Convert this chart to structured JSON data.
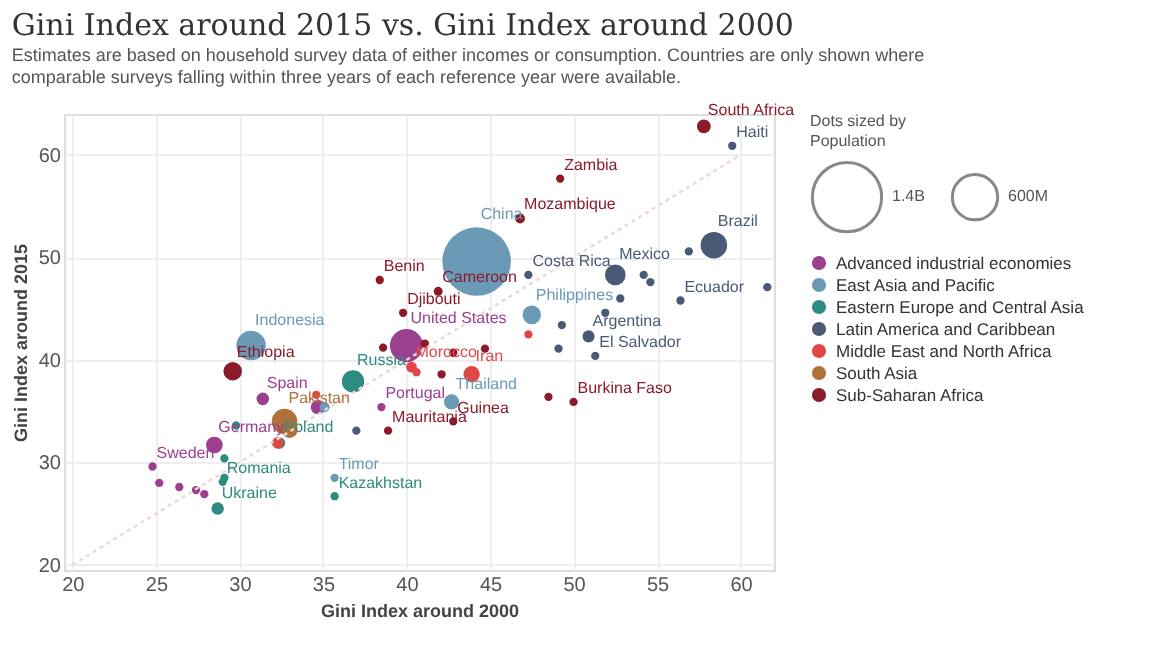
{
  "chart_data": {
    "type": "bubble",
    "title": "Gini Index around 2015 vs. Gini Index around 2000",
    "subtitle": "Estimates are based on household survey data of either incomes or consumption. Countries are only shown where comparable surveys falling within three years of each reference year were available.",
    "xlabel": "Gini Index around 2000",
    "ylabel": "Gini Index around 2015",
    "legend_title": "Dots sized by Population",
    "xlim": [
      19.5,
      62
    ],
    "ylim": [
      19.5,
      64
    ],
    "xticks": [
      20,
      25,
      30,
      35,
      40,
      45,
      50,
      55,
      60
    ],
    "yticks": [
      20,
      30,
      40,
      50,
      60
    ],
    "grid": true,
    "legend": "right",
    "marker": "circle",
    "size_legend": [
      {
        "value": 1400,
        "label": "1.4B"
      },
      {
        "value": 600,
        "label": "600M"
      }
    ],
    "series": [
      {
        "name": "Advanced industrial economies",
        "color": "#9b3f8f",
        "x": [
          40.0,
          31.4,
          38.5,
          28.5,
          24.8,
          34.7,
          25.2,
          26.4,
          27.4,
          27.9
        ],
        "values": [
          41.4,
          36.2,
          35.4,
          31.7,
          29.6,
          35.4,
          28.0,
          27.6,
          27.3,
          26.9
        ],
        "sizes": [
          320,
          46,
          20,
          81,
          20,
          60,
          20,
          20,
          20,
          20
        ]
      },
      {
        "name": "East Asia and Pacific",
        "color": "#6a9ab5",
        "x": [
          44.2,
          47.5,
          30.7,
          42.7,
          35.7,
          35.1
        ],
        "values": [
          49.6,
          44.4,
          41.4,
          35.9,
          28.5,
          35.4
        ],
        "sizes": [
          1370,
          100,
          255,
          68,
          20,
          30
        ]
      },
      {
        "name": "Eastern Europe and Central Asia",
        "color": "#2e8b7f",
        "x": [
          36.8,
          32.4,
          35.7,
          29.0,
          28.7,
          29.1,
          29.1,
          29.8
        ],
        "values": [
          37.9,
          31.9,
          26.7,
          28.1,
          25.5,
          28.5,
          30.4,
          33.6
        ],
        "sizes": [
          144,
          38,
          20,
          20,
          45,
          20,
          20,
          20
        ]
      },
      {
        "name": "Latin America and Caribbean",
        "color": "#4a5a75",
        "x": [
          59.5,
          47.3,
          52.5,
          58.4,
          56.4,
          50.9,
          51.3,
          56.9,
          61.6,
          54.2,
          54.6,
          52.8,
          51.9,
          49.3,
          49.1,
          37.0
        ],
        "values": [
          60.9,
          48.3,
          48.3,
          51.2,
          45.8,
          42.3,
          40.4,
          50.6,
          47.1,
          48.3,
          47.6,
          46.0,
          44.6,
          43.4,
          41.1,
          33.1
        ],
        "sizes": [
          20,
          20,
          125,
          205,
          20,
          43,
          20,
          20,
          20,
          20,
          20,
          20,
          20,
          20,
          20,
          20
        ]
      },
      {
        "name": "Middle East and North Africa",
        "color": "#e04848",
        "x": [
          40.3,
          43.9,
          32.3,
          34.6,
          47.3,
          40.6
        ],
        "values": [
          39.3,
          38.6,
          31.9,
          36.6,
          42.5,
          38.8
        ],
        "sizes": [
          34,
          78,
          40,
          20,
          20,
          20
        ]
      },
      {
        "name": "South Asia",
        "color": "#b0703a",
        "x": [
          32.7,
          33.0
        ],
        "values": [
          34.0,
          33.2
        ],
        "sizes": [
          190,
          80
        ]
      },
      {
        "name": "Sub-Saharan Africa",
        "color": "#8b1a2b",
        "x": [
          57.8,
          49.2,
          46.8,
          38.4,
          41.9,
          39.8,
          29.6,
          42.8,
          38.9,
          50.0,
          48.5,
          42.8,
          44.7,
          41.1,
          42.1,
          38.6
        ],
        "values": [
          62.8,
          57.7,
          53.8,
          47.8,
          46.7,
          44.6,
          38.9,
          34.0,
          33.1,
          35.9,
          36.4,
          40.7,
          41.1,
          41.6,
          38.6,
          41.2
        ],
        "sizes": [
          55,
          20,
          28,
          20,
          23,
          20,
          100,
          20,
          20,
          20,
          20,
          20,
          20,
          20,
          20,
          20
        ]
      },
      {
        "type": "line",
        "color": "#ecd6d6",
        "line_style": "dotted",
        "marker": "none",
        "x": [
          20,
          60
        ],
        "values": [
          20,
          60
        ]
      }
    ],
    "annotations": [
      {
        "text": "South Africa",
        "x": 57.8,
        "y": 62.8
      },
      {
        "text": "Haiti",
        "x": 59.5,
        "y": 60.9
      },
      {
        "text": "Zambia",
        "x": 49.2,
        "y": 57.7
      },
      {
        "text": "Mozambique",
        "x": 46.8,
        "y": 53.8
      },
      {
        "text": "China",
        "x": 44.2,
        "y": 49.6
      },
      {
        "text": "Benin",
        "x": 38.4,
        "y": 47.8
      },
      {
        "text": "Cameroon",
        "x": 41.9,
        "y": 46.7
      },
      {
        "text": "Costa Rica",
        "x": 47.3,
        "y": 48.3
      },
      {
        "text": "Mexico",
        "x": 52.5,
        "y": 48.3
      },
      {
        "text": "Brazil",
        "x": 58.4,
        "y": 51.2
      },
      {
        "text": "Ecuador",
        "x": 56.4,
        "y": 45.8
      },
      {
        "text": "Philippines",
        "x": 47.5,
        "y": 44.4
      },
      {
        "text": "Argentina",
        "x": 50.9,
        "y": 42.3
      },
      {
        "text": "El Salvador",
        "x": 51.3,
        "y": 40.4
      },
      {
        "text": "Djibouti",
        "x": 39.8,
        "y": 44.6
      },
      {
        "text": "United States",
        "x": 40.0,
        "y": 41.4
      },
      {
        "text": "Morocco",
        "x": 40.3,
        "y": 39.3
      },
      {
        "text": "Iran",
        "x": 43.9,
        "y": 38.6
      },
      {
        "text": "Indonesia",
        "x": 30.7,
        "y": 41.4
      },
      {
        "text": "Ethiopia",
        "x": 29.6,
        "y": 38.9
      },
      {
        "text": "Russia",
        "x": 36.8,
        "y": 37.9
      },
      {
        "text": "Spain",
        "x": 31.4,
        "y": 36.2
      },
      {
        "text": "Portugal",
        "x": 38.5,
        "y": 35.4
      },
      {
        "text": "Thailand",
        "x": 42.7,
        "y": 35.9
      },
      {
        "text": "Guinea",
        "x": 42.8,
        "y": 34.0
      },
      {
        "text": "Pakistan",
        "x": 32.7,
        "y": 34.0
      },
      {
        "text": "Germany",
        "x": 28.5,
        "y": 31.7
      },
      {
        "text": "Poland",
        "x": 32.4,
        "y": 31.9
      },
      {
        "text": "Mauritania",
        "x": 38.9,
        "y": 33.1
      },
      {
        "text": "Burkina Faso",
        "x": 50.0,
        "y": 35.9
      },
      {
        "text": "Timor",
        "x": 35.7,
        "y": 28.5
      },
      {
        "text": "Kazakhstan",
        "x": 35.7,
        "y": 26.7
      },
      {
        "text": "Sweden",
        "x": 24.8,
        "y": 29.6
      },
      {
        "text": "Romania",
        "x": 29.0,
        "y": 28.1
      },
      {
        "text": "Ukraine",
        "x": 28.7,
        "y": 25.5
      }
    ]
  }
}
